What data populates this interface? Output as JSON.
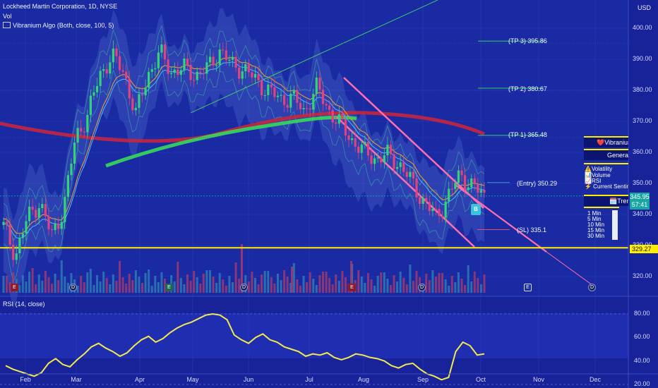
{
  "header": {
    "symbol_title": "Lockheed Martin Corporation, 1D, NYSE",
    "vol_label": "Vol",
    "indicator_label": "Vibranium Algo (Both, close, 100, 5)"
  },
  "currency": "USD",
  "price_axis": {
    "ticks": [
      "400.00",
      "390.00",
      "380.00",
      "370.00",
      "360.00",
      "350.00",
      "340.00",
      "330.00",
      "320.00"
    ]
  },
  "time_axis": {
    "ticks": [
      "Feb",
      "Mar",
      "Apr",
      "May",
      "Jun",
      "Jul",
      "Aug",
      "Sep",
      "Oct",
      "Nov",
      "Dec"
    ]
  },
  "rsi": {
    "label": "RSI (14, close)",
    "ticks": [
      "80.00",
      "60.00",
      "40.00",
      "20.00"
    ]
  },
  "levels": {
    "tp3": "(TP 3) 395.86",
    "tp2": "(TP 2) 380.67",
    "tp1": "(TP 1) 365.48",
    "entry": "(Entry) 350.29",
    "sl": "(SL) 335.1"
  },
  "last_price": {
    "price": "345.95",
    "countdown": "57:41"
  },
  "reference_price": "329.27",
  "signal_badge": "B",
  "events": {
    "earnings": "E",
    "dividend": "D"
  },
  "side_panel": {
    "title": "❤️Vibranium",
    "general": "General I",
    "factors": [
      "⚠️Volatility",
      "📊Volume",
      "📈RSI",
      "⚡ Current Sentime"
    ],
    "trend": "🗓️Trend",
    "timeframes": [
      "1 Min",
      "5 Min",
      "10 Min",
      "15 Min",
      "30 Min"
    ]
  },
  "colors": {
    "background": "#18239a",
    "bull": "#34d27a",
    "bear": "#e0437e",
    "ema200": "#d0263a",
    "ema_mid": "#39d85a",
    "channel": "#ff6fae",
    "rsi_line": "#f2e94e",
    "reference_line": "#ffee00",
    "last_price": "#17a6a1"
  },
  "chart_data": {
    "type": "line",
    "title": "Lockheed Martin Corporation, 1D, NYSE",
    "anchors": [
      [
        "Jan 22",
        336
      ],
      [
        "Jan 30",
        327
      ],
      [
        "Feb 8",
        339
      ],
      [
        "Feb 16",
        344
      ],
      [
        "Feb 26",
        333
      ],
      [
        "Mar 6",
        342
      ],
      [
        "Mar 15",
        365
      ],
      [
        "Mar 22",
        372
      ],
      [
        "Mar 29",
        385
      ],
      [
        "Apr 8",
        391
      ],
      [
        "Apr 15",
        386
      ],
      [
        "Apr 22",
        372
      ],
      [
        "Apr 29",
        385
      ],
      [
        "May 6",
        392
      ],
      [
        "May 10",
        386
      ],
      [
        "May 16",
        387
      ],
      [
        "May 24",
        385
      ],
      [
        "May 29",
        387
      ],
      [
        "Jun 3",
        393
      ],
      [
        "Jun 7",
        388
      ],
      [
        "Jun 14",
        387
      ],
      [
        "Jun 21",
        383
      ],
      [
        "Jun 28",
        380
      ],
      [
        "Jul 5",
        377
      ],
      [
        "Jul 12",
        378
      ],
      [
        "Jul 19",
        373
      ],
      [
        "Jul 23",
        381
      ],
      [
        "Jul 26",
        374
      ],
      [
        "Aug 2",
        369
      ],
      [
        "Aug 9",
        364
      ],
      [
        "Aug 16",
        360
      ],
      [
        "Aug 23",
        358
      ],
      [
        "Aug 30",
        359
      ],
      [
        "Sep 6",
        356
      ],
      [
        "Sep 10",
        350
      ],
      [
        "Sep 14",
        344
      ],
      [
        "Sep 18",
        339
      ],
      [
        "Sep 22",
        346
      ],
      [
        "Sep 25",
        353
      ],
      [
        "Sep 28",
        349
      ],
      [
        "Oct 2",
        346
      ]
    ],
    "rsi_values": [
      36,
      33,
      31,
      29,
      27,
      30,
      38,
      42,
      37,
      35,
      41,
      46,
      52,
      55,
      51,
      48,
      44,
      47,
      53,
      58,
      61,
      56,
      59,
      64,
      68,
      71,
      73,
      76,
      79,
      80,
      79,
      75,
      62,
      58,
      55,
      60,
      63,
      58,
      56,
      52,
      50,
      48,
      44,
      46,
      45,
      47,
      43,
      41,
      43,
      46,
      45,
      43,
      42,
      40,
      36,
      34,
      37,
      38,
      33,
      29,
      27,
      24,
      26,
      48,
      56,
      53,
      45,
      46
    ],
    "ylim": [
      316,
      408
    ],
    "rsi_range": [
      20,
      80
    ]
  }
}
